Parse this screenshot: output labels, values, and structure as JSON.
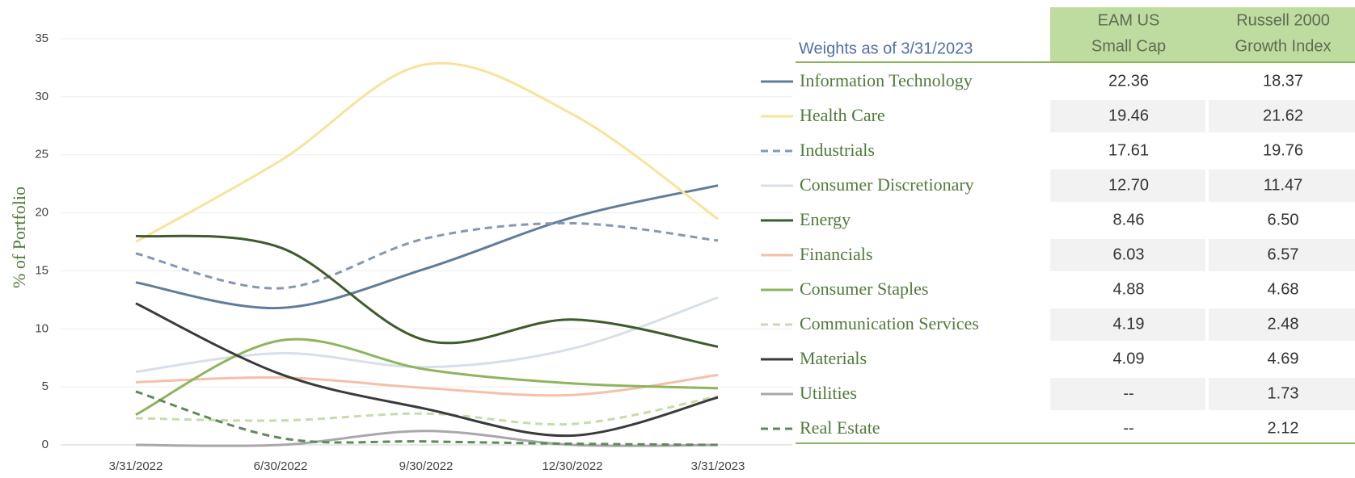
{
  "chart_data": {
    "type": "line",
    "y_label": "% of Portfolio",
    "categories": [
      "3/31/2022",
      "6/30/2022",
      "9/30/2022",
      "12/30/2022",
      "3/31/2023"
    ],
    "ylim": [
      0,
      35
    ],
    "yticks": [
      0,
      5,
      10,
      15,
      20,
      25,
      30,
      35
    ],
    "grid": true,
    "series": [
      {
        "name": "Information Technology",
        "color": "#5f7d9a",
        "dash": false,
        "values": [
          14,
          11.8,
          15.2,
          19.6,
          22.36
        ]
      },
      {
        "name": "Health Care",
        "color": "#f7e39a",
        "dash": false,
        "values": [
          17.5,
          24.5,
          32.8,
          28.5,
          19.46
        ]
      },
      {
        "name": "Industrials",
        "color": "#8696b4",
        "dash": true,
        "values": [
          16.5,
          13.5,
          17.8,
          19.1,
          17.61
        ]
      },
      {
        "name": "Consumer Discretionary",
        "color": "#d9dfe8",
        "dash": false,
        "values": [
          6.3,
          7.9,
          6.7,
          8.3,
          12.7
        ]
      },
      {
        "name": "Energy",
        "color": "#3e5b2c",
        "dash": false,
        "values": [
          18,
          17,
          9,
          10.8,
          8.46
        ]
      },
      {
        "name": "Financials",
        "color": "#f6bfa8",
        "dash": false,
        "values": [
          5.4,
          5.8,
          4.9,
          4.3,
          6.03
        ]
      },
      {
        "name": "Consumer Staples",
        "color": "#8db65c",
        "dash": false,
        "values": [
          2.6,
          9,
          6.5,
          5.3,
          4.88
        ]
      },
      {
        "name": "Communication Services",
        "color": "#c6dca8",
        "dash": true,
        "values": [
          2.3,
          2.1,
          2.7,
          1.8,
          4.19
        ]
      },
      {
        "name": "Materials",
        "color": "#3a3a3a",
        "dash": false,
        "values": [
          12.2,
          6.1,
          3.1,
          0.8,
          4.09
        ]
      },
      {
        "name": "Utilities",
        "color": "#a8a8a8",
        "dash": false,
        "values": [
          0,
          0,
          1.2,
          0,
          0
        ]
      },
      {
        "name": "Real Estate",
        "color": "#5d8a5a",
        "dash": true,
        "values": [
          4.6,
          0.6,
          0.3,
          0.1,
          0
        ]
      }
    ]
  },
  "table": {
    "title": "Weights as of 3/31/2023",
    "columns": [
      [
        "EAM US",
        "Small Cap"
      ],
      [
        "Russell 2000",
        "Growth Index"
      ]
    ],
    "rows": [
      [
        "22.36",
        "18.37"
      ],
      [
        "19.46",
        "21.62"
      ],
      [
        "17.61",
        "19.76"
      ],
      [
        "12.70",
        "11.47"
      ],
      [
        "8.46",
        "6.50"
      ],
      [
        "6.03",
        "6.57"
      ],
      [
        "4.88",
        "4.68"
      ],
      [
        "4.19",
        "2.48"
      ],
      [
        "4.09",
        "4.69"
      ],
      [
        "--",
        "1.73"
      ],
      [
        "--",
        "2.12"
      ]
    ]
  }
}
